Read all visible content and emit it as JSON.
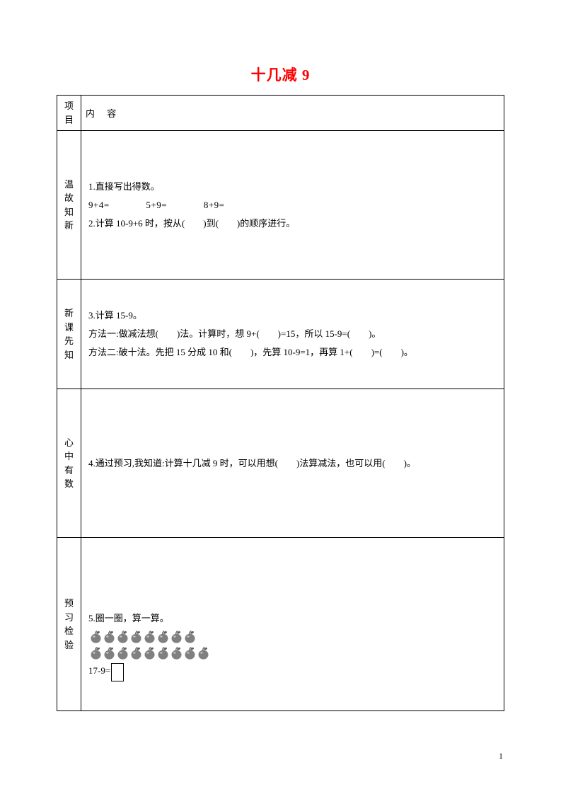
{
  "title": "十几减 9",
  "header": {
    "col1": "项目",
    "col2_a": "内",
    "col2_b": "容"
  },
  "sections": {
    "s1": {
      "label": "温故知新",
      "q1_title": "1.直接写出得数。",
      "q1_e1": "9+4=",
      "q1_e2": "5+9=",
      "q1_e3": "8+9=",
      "q2": "2.计算 10-9+6 时，按从(　　)到(　　)的顺序进行。"
    },
    "s2": {
      "label": "新课先知",
      "q3_title": "3.计算 15-9。",
      "q3_m1": "方法一:做减法想(　　)法。计算时，想 9+(　　)=15，所以 15-9=(　　)。",
      "q3_m2": "方法二:破十法。先把 15 分成 10 和(　　)，先算 10-9=1，再算 1+(　　)=(　　)。"
    },
    "s3": {
      "label": "心中有数",
      "q4": "4.通过预习,我知道:计算十几减 9 时，可以用想(　　)法算减法，也可以用(　　)。"
    },
    "s4": {
      "label": "预习检验",
      "q5_title": "5.圈一圈，算一算。",
      "apple_row1_count": 8,
      "apple_row2_count": 9,
      "q5_eq": "17-9=",
      "apple_color": "#808080",
      "leaf_color": "#606060"
    }
  },
  "page_number": "1"
}
